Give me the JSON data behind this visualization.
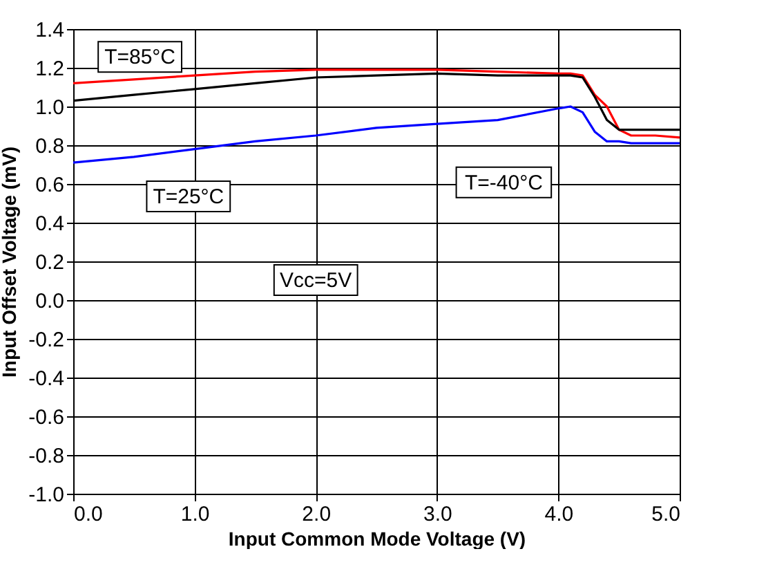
{
  "chart_data": {
    "type": "line",
    "xlabel": "Input Common Mode Voltage (V)",
    "ylabel": "Input Offset Voltage (mV)",
    "xlim": [
      0,
      5
    ],
    "xticks": [
      {
        "value": 0,
        "label": "0.0"
      },
      {
        "value": 1,
        "label": "1.0"
      },
      {
        "value": 2,
        "label": "2.0"
      },
      {
        "value": 3,
        "label": "3.0"
      },
      {
        "value": 4,
        "label": "4.0"
      },
      {
        "value": 5,
        "label": "5.0"
      }
    ],
    "ylim": [
      -1.0,
      1.4
    ],
    "yticks": [
      {
        "value": -1.0,
        "label": "-1.0"
      },
      {
        "value": -0.8,
        "label": "-0.8"
      },
      {
        "value": -0.6,
        "label": "-0.6"
      },
      {
        "value": -0.4,
        "label": "-0.4"
      },
      {
        "value": -0.2,
        "label": "-0.2"
      },
      {
        "value": 0,
        "label": "0.0"
      },
      {
        "value": 0.2,
        "label": "0.2"
      },
      {
        "value": 0.4,
        "label": "0.4"
      },
      {
        "value": 0.6,
        "label": "0.6"
      },
      {
        "value": 0.8,
        "label": "0.8"
      },
      {
        "value": 1.0,
        "label": "1.0"
      },
      {
        "value": 1.2,
        "label": "1.2"
      },
      {
        "value": 1.4,
        "label": "1.4"
      }
    ],
    "grid": true,
    "marker": "none",
    "line_style": "solid",
    "x": [
      0,
      0.5,
      1,
      1.5,
      2,
      2.5,
      3,
      3.5,
      4,
      4.1,
      4.2,
      4.3,
      4.4,
      4.5,
      4.6,
      4.8,
      5
    ],
    "series": [
      {
        "color": "#ff0000",
        "values": [
          1.12,
          1.14,
          1.16,
          1.18,
          1.19,
          1.19,
          1.19,
          1.18,
          1.17,
          1.17,
          1.16,
          1.06,
          1.0,
          0.88,
          0.85,
          0.85,
          0.84
        ]
      },
      {
        "color": "#000000",
        "values": [
          1.03,
          1.06,
          1.09,
          1.12,
          1.15,
          1.16,
          1.17,
          1.16,
          1.16,
          1.16,
          1.15,
          1.05,
          0.93,
          0.88,
          0.88,
          0.88,
          0.88
        ]
      },
      {
        "color": "#0000ff",
        "values": [
          0.71,
          0.74,
          0.78,
          0.82,
          0.85,
          0.89,
          0.91,
          0.93,
          0.99,
          1.0,
          0.97,
          0.87,
          0.82,
          0.82,
          0.81,
          0.81,
          0.81
        ]
      }
    ],
    "annotations": [
      "T=85°C",
      "T=25°C",
      "T=-40°C",
      "Vcc=5V"
    ]
  }
}
